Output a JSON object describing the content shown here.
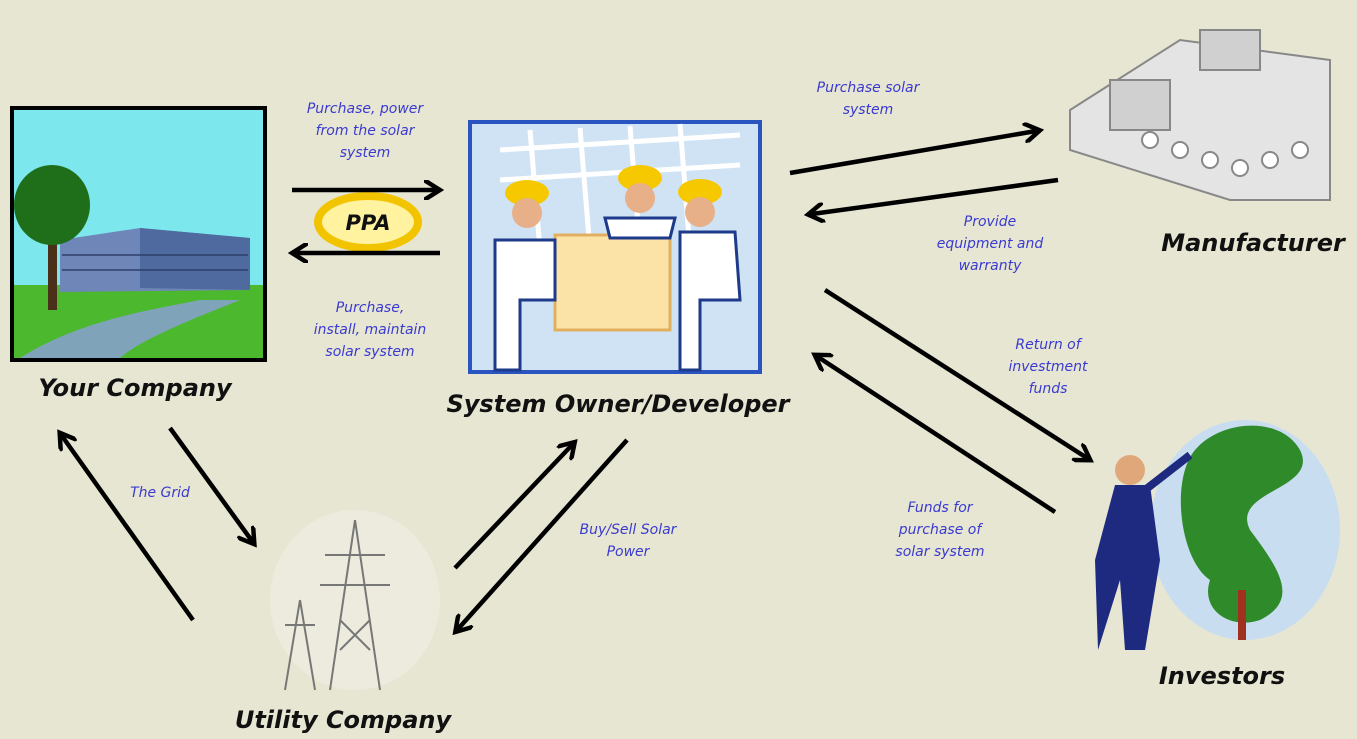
{
  "nodes": [
    {
      "label": "Your Company"
    },
    {
      "label": "System Owner/Developer"
    },
    {
      "label": "Manufacturer"
    },
    {
      "label": "Investors"
    },
    {
      "label": "Utility Company"
    }
  ],
  "badge": "PPA",
  "edges": [
    {
      "label_lines": [
        "Purchase, power",
        "from the solar",
        "system"
      ]
    },
    {
      "label_lines": [
        "Purchase,",
        "install, maintain",
        "solar system"
      ]
    },
    {
      "label_lines": [
        "Purchase solar",
        "system"
      ]
    },
    {
      "label_lines": [
        "Provide",
        "equipment and",
        "warranty"
      ]
    },
    {
      "label_lines": [
        "Return of",
        "investment",
        "funds"
      ]
    },
    {
      "label_lines": [
        "Funds for",
        "purchase of",
        "solar system"
      ]
    },
    {
      "label_lines": [
        "Buy/Sell Solar",
        "Power"
      ]
    },
    {
      "label_lines": [
        "The Grid"
      ]
    }
  ]
}
